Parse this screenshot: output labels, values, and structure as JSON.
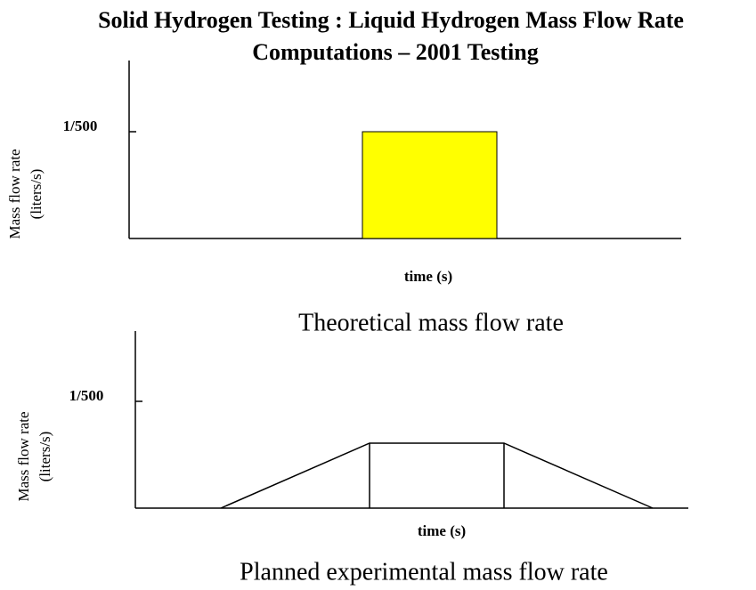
{
  "header": {
    "title_lines": [
      "Solid Hydrogen Testing : Liquid Hydrogen Mass Flow Rate",
      "Computations – 2001 Testing"
    ]
  },
  "panels": [
    {
      "y_label_lines": [
        "Mass flow rate",
        "(liters/s)"
      ],
      "y_tick_label": "1/500",
      "x_label": "time (s)",
      "caption": "Theoretical mass flow rate"
    },
    {
      "y_label_lines": [
        "Mass flow rate",
        "(liters/s)"
      ],
      "y_tick_label": "1/500",
      "x_label": "time (s)",
      "caption": "Planned experimental mass flow rate"
    }
  ]
}
